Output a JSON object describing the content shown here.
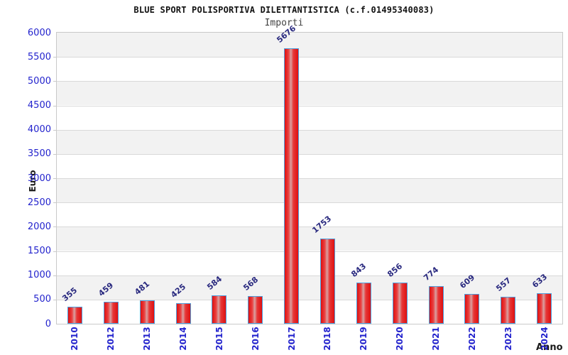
{
  "chart_data": {
    "type": "bar",
    "title": "BLUE SPORT POLISPORTIVA DILETTANTISTICA (c.f.01495340083)",
    "subtitle": "Importi",
    "xlabel": "Anno",
    "ylabel": "Euro",
    "categories": [
      "2010",
      "2012",
      "2013",
      "2014",
      "2015",
      "2016",
      "2017",
      "2018",
      "2019",
      "2020",
      "2021",
      "2022",
      "2023",
      "2024"
    ],
    "values": [
      355,
      459,
      481,
      425,
      584,
      568,
      5676,
      1753,
      843,
      856,
      774,
      609,
      557,
      633
    ],
    "ylim": [
      0,
      6000
    ],
    "ytick_step": 500,
    "grid": true,
    "bands_alternating": true,
    "legend_position": "none",
    "colors": {
      "bar_fill": "#e81717",
      "bar_highlight": "#d9a0a0",
      "bar_border": "#4e9fdd",
      "tick_label": "#2323cd",
      "value_label": "#29297f",
      "axis_title": "#1a1a1a",
      "subtitle_text": "#444444",
      "band": "#f2f2f2",
      "gridline": "#d9d9d9",
      "plot_border": "#c9c9c9"
    }
  }
}
